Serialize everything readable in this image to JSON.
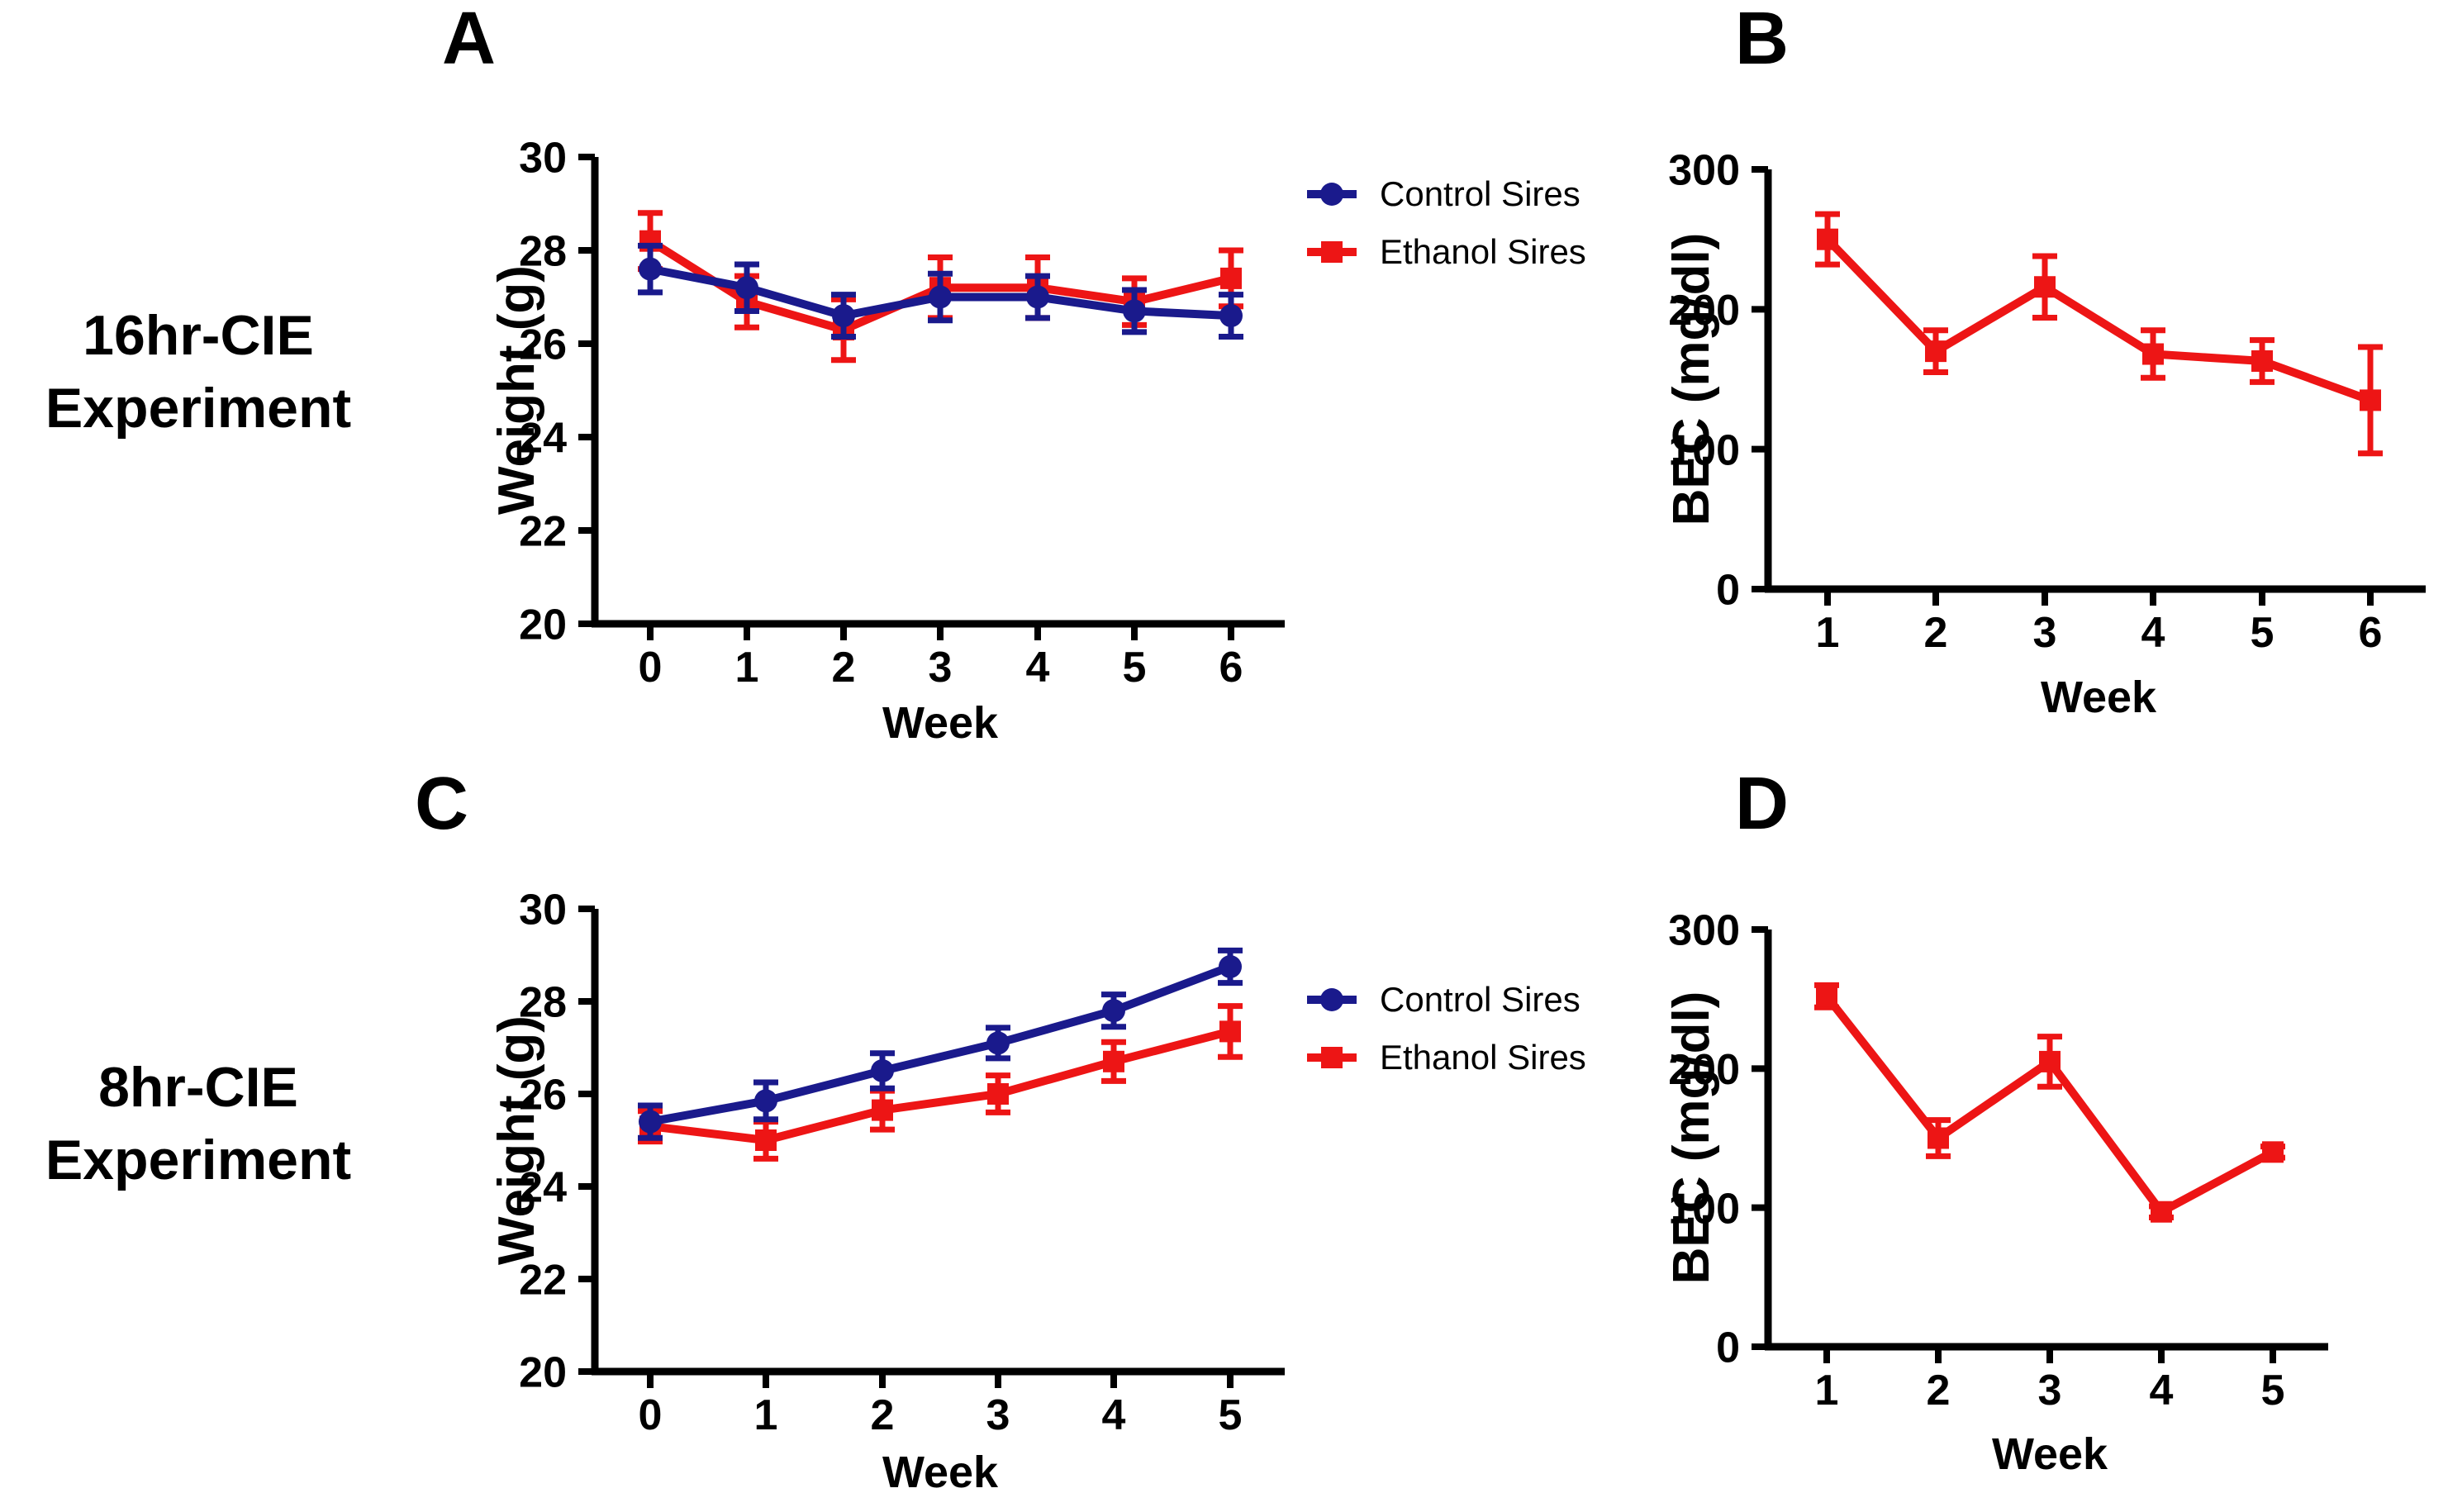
{
  "figure": {
    "type": "scientific-multipanel-figure",
    "background": "#ffffff"
  },
  "colors": {
    "control": "#1a1a8c",
    "ethanol": "#ed1515",
    "axis": "#000000",
    "text": "#000000"
  },
  "row_labels": [
    {
      "line1": "16hr-CIE",
      "line2": "Experiment"
    },
    {
      "line1": "8hr-CIE",
      "line2": "Experiment"
    }
  ],
  "legend": {
    "items": [
      {
        "label": "Control Sires",
        "marker": "circle",
        "color": "control"
      },
      {
        "label": "Ethanol Sires",
        "marker": "square",
        "color": "ethanol"
      }
    ]
  },
  "chart_data": [
    {
      "id": "A",
      "panel_label": "A",
      "type": "line",
      "row_group": "16hr-CIE Experiment",
      "title": "",
      "xlabel": "Week",
      "ylabel": "Weight (g)",
      "x": [
        0,
        1,
        2,
        3,
        4,
        5,
        6
      ],
      "ylim": [
        20,
        30
      ],
      "yticks": [
        20,
        22,
        24,
        26,
        28,
        30
      ],
      "grid": false,
      "legend_position": "right-of-plot",
      "series": [
        {
          "name": "Control Sires",
          "color": "control",
          "marker": "circle",
          "values": [
            27.6,
            27.2,
            26.6,
            27.0,
            27.0,
            26.7,
            26.6
          ],
          "errors": [
            0.5,
            0.5,
            0.45,
            0.5,
            0.45,
            0.45,
            0.45
          ]
        },
        {
          "name": "Ethanol Sires",
          "color": "ethanol",
          "marker": "square",
          "values": [
            28.2,
            26.9,
            26.3,
            27.2,
            27.2,
            26.9,
            27.4
          ],
          "errors": [
            0.6,
            0.55,
            0.65,
            0.65,
            0.65,
            0.5,
            0.6
          ]
        }
      ]
    },
    {
      "id": "B",
      "panel_label": "B",
      "type": "line",
      "row_group": "16hr-CIE Experiment",
      "title": "",
      "xlabel": "Week",
      "ylabel": "BEC (mg/dl)",
      "x": [
        1,
        2,
        3,
        4,
        5,
        6
      ],
      "ylim": [
        0,
        300
      ],
      "yticks": [
        0,
        100,
        200,
        300
      ],
      "grid": false,
      "legend_position": "none",
      "series": [
        {
          "name": "Ethanol Sires",
          "color": "ethanol",
          "marker": "square",
          "values": [
            250,
            170,
            216,
            168,
            163,
            135
          ],
          "errors": [
            18,
            15,
            22,
            17,
            15,
            38
          ]
        }
      ]
    },
    {
      "id": "C",
      "panel_label": "C",
      "type": "line",
      "row_group": "8hr-CIE Experiment",
      "title": "",
      "xlabel": "Week",
      "ylabel": "Weight (g)",
      "x": [
        0,
        1,
        2,
        3,
        4,
        5
      ],
      "ylim": [
        20,
        30
      ],
      "yticks": [
        20,
        22,
        24,
        26,
        28,
        30
      ],
      "grid": false,
      "legend_position": "right-of-plot",
      "series": [
        {
          "name": "Control Sires",
          "color": "control",
          "marker": "circle",
          "values": [
            25.4,
            25.85,
            26.5,
            27.1,
            27.8,
            28.75
          ],
          "errors": [
            0.35,
            0.4,
            0.38,
            0.33,
            0.35,
            0.35
          ]
        },
        {
          "name": "Ethanol Sires",
          "color": "ethanol",
          "marker": "square",
          "values": [
            25.3,
            25.0,
            25.65,
            26.0,
            26.7,
            27.35
          ],
          "errors": [
            0.33,
            0.4,
            0.42,
            0.4,
            0.42,
            0.55
          ]
        }
      ]
    },
    {
      "id": "D",
      "panel_label": "D",
      "type": "line",
      "row_group": "8hr-CIE Experiment",
      "title": "",
      "xlabel": "Week",
      "ylabel": "BEC (mg/dl)",
      "x": [
        1,
        2,
        3,
        4,
        5
      ],
      "ylim": [
        0,
        300
      ],
      "yticks": [
        0,
        100,
        200,
        300
      ],
      "grid": false,
      "legend_position": "none",
      "series": [
        {
          "name": "Ethanol Sires",
          "color": "ethanol",
          "marker": "square",
          "values": [
            252,
            150,
            205,
            97,
            140
          ],
          "errors": [
            8,
            13,
            18,
            4,
            4
          ]
        }
      ]
    }
  ]
}
